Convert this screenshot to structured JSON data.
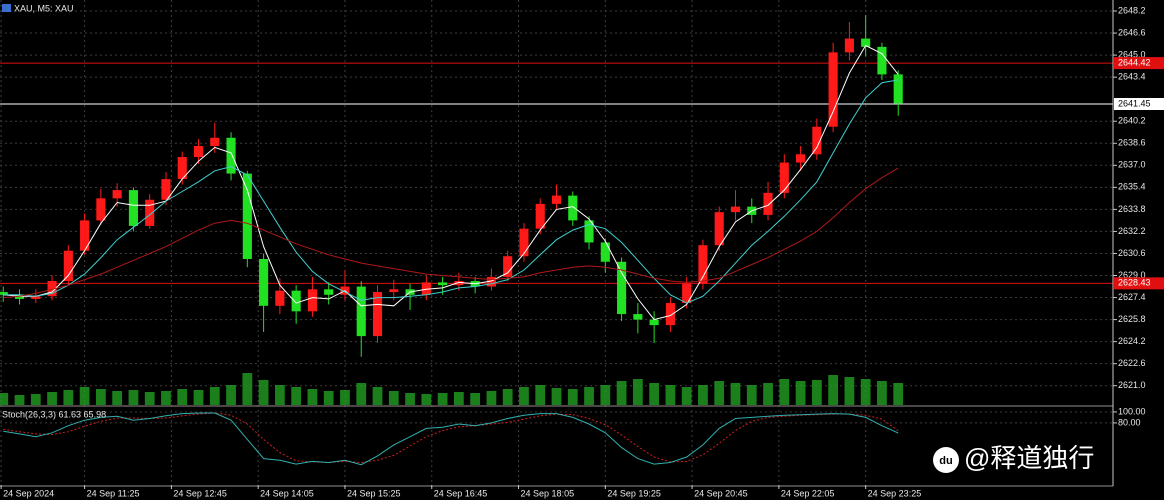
{
  "chart_data": {
    "type": "candlestick",
    "title": "XAU, M5: XAU",
    "x": [
      610,
      625,
      640,
      655,
      670,
      685,
      700,
      715,
      730,
      745,
      760,
      775,
      790,
      805,
      820,
      835,
      850,
      865,
      880,
      895,
      910,
      925,
      940,
      955,
      970,
      985,
      1000,
      1015,
      1030,
      1045,
      1060,
      1075,
      1090,
      1105,
      1120,
      1135,
      1150,
      1165,
      1180,
      1195,
      1210,
      1225,
      1240,
      1255,
      1270,
      1285,
      1300,
      1315,
      1330,
      1345,
      1360,
      1375,
      1390,
      1405,
      1420,
      1435
    ],
    "open": [
      2627.8,
      2627.6,
      2627.3,
      2627.5,
      2628.6,
      2630.8,
      2633.0,
      2634.6,
      2635.2,
      2632.6,
      2634.5,
      2636.0,
      2637.6,
      2638.4,
      2639.0,
      2636.4,
      2630.2,
      2626.8,
      2627.9,
      2626.4,
      2628.0,
      2627.6,
      2628.2,
      2624.6,
      2627.8,
      2628.0,
      2627.6,
      2628.5,
      2628.3,
      2628.6,
      2628.2,
      2628.9,
      2630.4,
      2632.4,
      2634.2,
      2634.8,
      2633.0,
      2631.4,
      2630.0,
      2626.2,
      2625.8,
      2625.4,
      2627.0,
      2628.4,
      2631.2,
      2633.6,
      2634.0,
      2633.4,
      2635.0,
      2637.2,
      2637.8,
      2639.8,
      2645.2,
      2646.2,
      2645.6,
      2643.6
    ],
    "high": [
      2628.2,
      2628.0,
      2628.0,
      2629.0,
      2631.2,
      2633.5,
      2635.3,
      2635.7,
      2635.4,
      2634.9,
      2636.5,
      2638.0,
      2638.9,
      2640.1,
      2639.4,
      2636.6,
      2630.6,
      2628.8,
      2628.3,
      2628.9,
      2628.5,
      2629.4,
      2628.6,
      2628.3,
      2628.7,
      2628.4,
      2629.0,
      2628.9,
      2629.2,
      2628.9,
      2629.5,
      2630.8,
      2632.8,
      2634.6,
      2635.6,
      2635.1,
      2633.3,
      2631.7,
      2630.3,
      2627.0,
      2626.4,
      2627.4,
      2628.9,
      2631.6,
      2634.0,
      2635.2,
      2634.6,
      2635.8,
      2637.8,
      2638.4,
      2640.4,
      2645.9,
      2647.4,
      2647.9,
      2645.9,
      2643.9
    ],
    "low": [
      2627.1,
      2626.9,
      2627.0,
      2627.2,
      2628.3,
      2630.5,
      2632.7,
      2634.0,
      2632.2,
      2632.4,
      2634.1,
      2635.6,
      2637.1,
      2637.9,
      2635.9,
      2629.6,
      2624.9,
      2626.2,
      2625.5,
      2626.0,
      2626.9,
      2627.2,
      2623.1,
      2624.1,
      2627.2,
      2626.5,
      2627.2,
      2627.6,
      2627.9,
      2627.7,
      2627.9,
      2628.6,
      2630.0,
      2632.0,
      2633.8,
      2632.6,
      2630.9,
      2629.2,
      2625.7,
      2624.8,
      2624.1,
      2624.9,
      2626.6,
      2628.0,
      2630.8,
      2633.0,
      2632.8,
      2633.0,
      2634.6,
      2636.6,
      2637.4,
      2639.4,
      2644.6,
      2644.9,
      2643.2,
      2640.6
    ],
    "close": [
      2627.6,
      2627.3,
      2627.5,
      2628.6,
      2630.8,
      2633.0,
      2634.6,
      2635.2,
      2632.6,
      2634.5,
      2636.0,
      2637.6,
      2638.4,
      2639.0,
      2636.4,
      2630.2,
      2626.8,
      2627.9,
      2626.4,
      2628.0,
      2627.6,
      2628.2,
      2624.6,
      2627.8,
      2628.0,
      2627.6,
      2628.5,
      2628.3,
      2628.6,
      2628.2,
      2628.9,
      2630.4,
      2632.4,
      2634.2,
      2634.8,
      2633.0,
      2631.4,
      2630.0,
      2626.2,
      2625.8,
      2625.4,
      2627.0,
      2628.4,
      2631.2,
      2633.6,
      2634.0,
      2633.4,
      2635.0,
      2637.2,
      2637.8,
      2639.8,
      2645.2,
      2646.2,
      2645.6,
      2643.6,
      2641.5
    ],
    "up_color": "#ff1a1a",
    "down_color": "#22e022",
    "lines": [
      {
        "color": "#ffffff",
        "values": [
          2627.6,
          2627.5,
          2627.5,
          2627.8,
          2629.0,
          2630.8,
          2632.8,
          2634.3,
          2634.1,
          2634.1,
          2634.4,
          2636.0,
          2637.3,
          2638.3,
          2637.9,
          2635.2,
          2631.1,
          2628.3,
          2627.0,
          2627.4,
          2627.3,
          2627.9,
          2626.8,
          2626.9,
          2626.8,
          2627.8,
          2628.0,
          2628.1,
          2628.5,
          2628.4,
          2628.6,
          2629.2,
          2630.6,
          2632.3,
          2633.8,
          2634.0,
          2633.1,
          2631.5,
          2629.2,
          2627.3,
          2625.8,
          2626.1,
          2626.9,
          2628.9,
          2631.1,
          2632.9,
          2633.7,
          2634.1,
          2635.2,
          2636.7,
          2638.3,
          2640.9,
          2643.7,
          2645.7,
          2645.1,
          2643.6
        ]
      },
      {
        "color": "#40d0d0",
        "values": [
          2627.6,
          2627.6,
          2627.5,
          2627.7,
          2628.3,
          2629.1,
          2630.3,
          2631.6,
          2632.5,
          2633.4,
          2634.4,
          2635.1,
          2635.8,
          2636.6,
          2636.9,
          2636.3,
          2634.4,
          2632.5,
          2630.7,
          2629.3,
          2628.4,
          2627.8,
          2627.2,
          2627.4,
          2627.4,
          2627.5,
          2627.6,
          2627.8,
          2628.1,
          2628.2,
          2628.4,
          2628.7,
          2629.4,
          2630.5,
          2631.6,
          2632.3,
          2632.7,
          2632.4,
          2631.4,
          2630.1,
          2628.8,
          2627.6,
          2627.0,
          2627.5,
          2628.6,
          2629.9,
          2631.2,
          2632.2,
          2633.3,
          2634.5,
          2635.8,
          2637.9,
          2640.0,
          2641.9,
          2643.0,
          2643.2
        ]
      },
      {
        "color": "#b01818",
        "values": [
          2627.4,
          2627.5,
          2627.7,
          2628.0,
          2628.3,
          2628.7,
          2629.1,
          2629.6,
          2630.1,
          2630.6,
          2631.1,
          2631.7,
          2632.3,
          2632.8,
          2633.0,
          2632.8,
          2632.3,
          2631.8,
          2631.3,
          2630.9,
          2630.5,
          2630.2,
          2629.9,
          2629.7,
          2629.5,
          2629.3,
          2629.1,
          2629.0,
          2628.9,
          2628.8,
          2628.7,
          2628.8,
          2628.9,
          2629.2,
          2629.4,
          2629.6,
          2629.7,
          2629.6,
          2629.4,
          2629.1,
          2628.8,
          2628.6,
          2628.5,
          2628.6,
          2628.8,
          2629.3,
          2629.8,
          2630.3,
          2630.9,
          2631.5,
          2632.2,
          2633.2,
          2634.3,
          2635.3,
          2636.1,
          2636.8
        ]
      }
    ],
    "volume": {
      "color": "#22a022",
      "values": [
        12,
        10,
        11,
        13,
        15,
        18,
        16,
        14,
        15,
        13,
        14,
        16,
        15,
        18,
        20,
        32,
        25,
        20,
        18,
        16,
        14,
        15,
        22,
        18,
        14,
        12,
        11,
        12,
        13,
        12,
        14,
        16,
        18,
        20,
        17,
        16,
        18,
        20,
        24,
        26,
        22,
        20,
        18,
        20,
        24,
        22,
        20,
        22,
        26,
        24,
        25,
        30,
        28,
        26,
        24,
        22
      ]
    },
    "hlines": [
      {
        "value": 2644.42,
        "color": "#e01010",
        "text_color": "#ffffff"
      },
      {
        "value": 2641.45,
        "color": "#ffffff",
        "text_color": "#000000"
      },
      {
        "value": 2628.43,
        "color": "#e01010",
        "text_color": "#ffffff"
      }
    ],
    "ylim": [
      2619.6,
      2649.0
    ],
    "yticks": [
      2648.2,
      2646.6,
      {
        "value": 2645,
        "label": "2645.0"
      },
      2643.4,
      2640.2,
      2638.6,
      {
        "value": 2637,
        "label": "2637.0"
      },
      2635.4,
      2633.8,
      2632.2,
      2630.6,
      {
        "value": 2629,
        "label": "2629.0"
      },
      2627.4,
      2625.8,
      2624.2,
      2622.6,
      {
        "value": 2621,
        "label": "2621.0"
      }
    ],
    "xlim": [
      607,
      1633
    ],
    "xticks": [
      {
        "value": 608,
        "label": "24 Sep 2024"
      },
      {
        "value": 685,
        "label": "24 Sep 11:25"
      },
      {
        "value": 765,
        "label": "24 Sep 12:45"
      },
      {
        "value": 845,
        "label": "24 Sep 14:05"
      },
      {
        "value": 925,
        "label": "24 Sep 15:25"
      },
      {
        "value": 1005,
        "label": "24 Sep 16:45"
      },
      {
        "value": 1085,
        "label": "24 Sep 18:05"
      },
      {
        "value": 1165,
        "label": "24 Sep 19:25"
      },
      {
        "value": 1245,
        "label": "24 Sep 20:45"
      },
      {
        "value": 1325,
        "label": "24 Sep 22:05"
      },
      {
        "value": 1405,
        "label": "24 Sep 23:25"
      }
    ],
    "grid": true,
    "stoch": {
      "title": "Stoch(26,3,3) 61.63 65.98",
      "ylim": [
        -33,
        109
      ],
      "yticks": [
        {
          "value": 100,
          "label": "100.00"
        },
        {
          "value": 80,
          "label": "80.00"
        }
      ],
      "main": {
        "color": "#30b0b0",
        "values": [
          65,
          60,
          55,
          62,
          75,
          85,
          90,
          92,
          85,
          88,
          93,
          97,
          98,
          98,
          85,
          50,
          15,
          12,
          5,
          10,
          8,
          12,
          4,
          20,
          40,
          55,
          70,
          72,
          78,
          75,
          80,
          88,
          94,
          97,
          97,
          90,
          78,
          62,
          35,
          15,
          5,
          8,
          18,
          40,
          70,
          88,
          90,
          92,
          94,
          95,
          96,
          97,
          96,
          90,
          75,
          61.63
        ]
      },
      "signal": {
        "color": "#d02020",
        "values": [
          68,
          64,
          60,
          59,
          64,
          74,
          83,
          89,
          89,
          88,
          89,
          93,
          96,
          98,
          94,
          78,
          50,
          26,
          11,
          9,
          8,
          10,
          8,
          12,
          21,
          38,
          55,
          66,
          73,
          75,
          78,
          81,
          87,
          93,
          96,
          95,
          88,
          77,
          58,
          37,
          18,
          9,
          10,
          22,
          43,
          66,
          83,
          90,
          92,
          94,
          95,
          96,
          96,
          94,
          87,
          65.98
        ]
      }
    }
  },
  "watermark": {
    "icon": "du",
    "text": "@释道独行"
  }
}
